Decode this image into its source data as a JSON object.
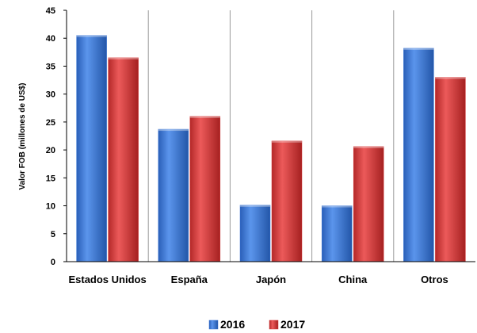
{
  "chart_data": {
    "type": "bar",
    "categories": [
      "Estados Unidos",
      "España",
      "Japón",
      "China",
      "Otros"
    ],
    "series": [
      {
        "name": "2016",
        "values": [
          40.5,
          23.7,
          10.1,
          10.0,
          38.2
        ],
        "color": "#3a77d8"
      },
      {
        "name": "2017",
        "values": [
          36.5,
          26.0,
          21.6,
          20.6,
          33.0
        ],
        "color": "#d83a3a"
      }
    ],
    "ylabel": "Valor FOB (millones de US$)",
    "ylim": [
      0,
      45
    ],
    "yticks": [
      0,
      5,
      10,
      15,
      20,
      25,
      30,
      35,
      40,
      45
    ],
    "grid": false,
    "category_separators": true,
    "legend_position": "bottom-center"
  }
}
